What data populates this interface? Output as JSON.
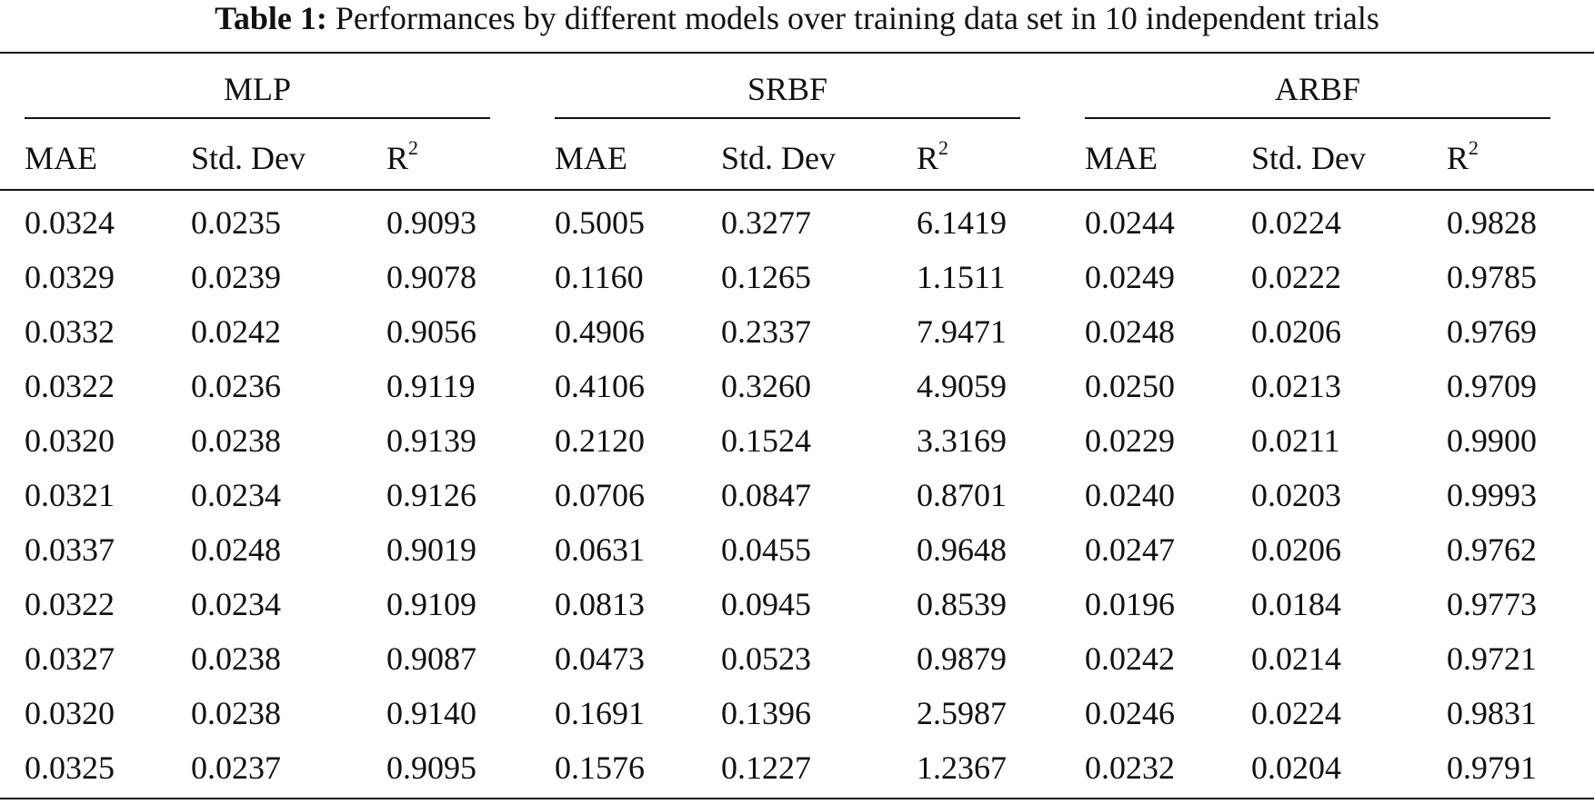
{
  "table": {
    "caption_lead": "Table 1:",
    "caption_text": "Performances by different models over training data set in 10 independent trials",
    "groups": [
      "MLP",
      "SRBF",
      "ARBF"
    ],
    "columns": [
      {
        "base": "MAE",
        "sup": ""
      },
      {
        "base": "Std. Dev",
        "sup": ""
      },
      {
        "base": "R",
        "sup": "2"
      }
    ],
    "rows": [
      [
        "0.0324",
        "0.0235",
        "0.9093",
        "0.5005",
        "0.3277",
        "6.1419",
        "0.0244",
        "0.0224",
        "0.9828"
      ],
      [
        "0.0329",
        "0.0239",
        "0.9078",
        "0.1160",
        "0.1265",
        "1.1511",
        "0.0249",
        "0.0222",
        "0.9785"
      ],
      [
        "0.0332",
        "0.0242",
        "0.9056",
        "0.4906",
        "0.2337",
        "7.9471",
        "0.0248",
        "0.0206",
        "0.9769"
      ],
      [
        "0.0322",
        "0.0236",
        "0.9119",
        "0.4106",
        "0.3260",
        "4.9059",
        "0.0250",
        "0.0213",
        "0.9709"
      ],
      [
        "0.0320",
        "0.0238",
        "0.9139",
        "0.2120",
        "0.1524",
        "3.3169",
        "0.0229",
        "0.0211",
        "0.9900"
      ],
      [
        "0.0321",
        "0.0234",
        "0.9126",
        "0.0706",
        "0.0847",
        "0.8701",
        "0.0240",
        "0.0203",
        "0.9993"
      ],
      [
        "0.0337",
        "0.0248",
        "0.9019",
        "0.0631",
        "0.0455",
        "0.9648",
        "0.0247",
        "0.0206",
        "0.9762"
      ],
      [
        "0.0322",
        "0.0234",
        "0.9109",
        "0.0813",
        "0.0945",
        "0.8539",
        "0.0196",
        "0.0184",
        "0.9773"
      ],
      [
        "0.0327",
        "0.0238",
        "0.9087",
        "0.0473",
        "0.0523",
        "0.9879",
        "0.0242",
        "0.0214",
        "0.9721"
      ],
      [
        "0.0320",
        "0.0238",
        "0.9140",
        "0.1691",
        "0.1396",
        "2.5987",
        "0.0246",
        "0.0224",
        "0.9831"
      ],
      [
        "0.0325",
        "0.0237",
        "0.9095",
        "0.1576",
        "0.1227",
        "1.2367",
        "0.0232",
        "0.0204",
        "0.9791"
      ]
    ]
  }
}
